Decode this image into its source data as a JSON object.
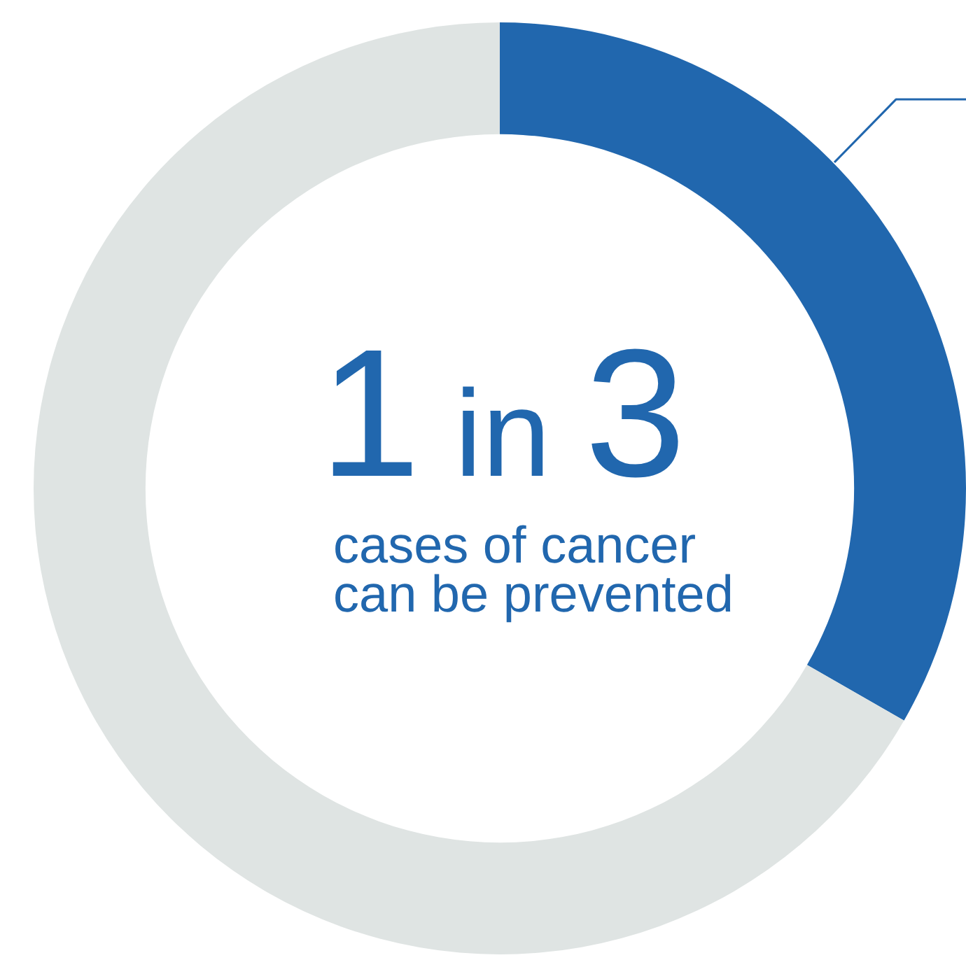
{
  "chart_data": {
    "type": "donut",
    "categories": [
      null,
      null
    ],
    "values": [
      33.3,
      66.7
    ],
    "colors": [
      "#2167ae",
      "#dfe4e3"
    ],
    "annotations": [
      "1 in 3",
      "cases of cancer\ncan be prevented"
    ]
  }
}
